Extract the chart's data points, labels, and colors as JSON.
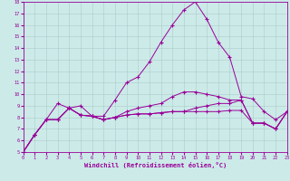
{
  "xlabel": "Windchill (Refroidissement éolien,°C)",
  "background_color": "#cceae8",
  "line_color": "#990099",
  "grid_color": "#aacccc",
  "xlim": [
    0,
    23
  ],
  "ylim": [
    5,
    18
  ],
  "yticks": [
    5,
    6,
    7,
    8,
    9,
    10,
    11,
    12,
    13,
    14,
    15,
    16,
    17,
    18
  ],
  "xticks": [
    0,
    1,
    2,
    3,
    4,
    5,
    6,
    7,
    8,
    9,
    10,
    11,
    12,
    13,
    14,
    15,
    16,
    17,
    18,
    19,
    20,
    21,
    22,
    23
  ],
  "lines": [
    {
      "x": [
        0,
        1,
        2,
        3,
        4,
        5,
        6,
        7,
        8,
        9,
        10,
        11,
        12,
        13,
        14,
        15,
        16,
        17,
        18,
        19,
        20,
        21,
        22,
        23
      ],
      "y": [
        5.0,
        6.5,
        7.8,
        7.8,
        8.8,
        9.0,
        8.1,
        8.1,
        9.5,
        11.0,
        11.5,
        12.8,
        14.5,
        16.0,
        17.3,
        18.0,
        16.5,
        14.5,
        13.2,
        9.8,
        9.6,
        8.5,
        7.8,
        8.5
      ]
    },
    {
      "x": [
        0,
        1,
        2,
        3,
        4,
        5,
        6,
        7,
        8,
        9,
        10,
        11,
        12,
        13,
        14,
        15,
        16,
        17,
        18,
        19,
        20,
        21,
        22,
        23
      ],
      "y": [
        5.0,
        6.5,
        7.8,
        7.8,
        8.8,
        8.2,
        8.1,
        7.8,
        8.0,
        8.2,
        8.3,
        8.3,
        8.4,
        8.5,
        8.5,
        8.5,
        8.5,
        8.5,
        8.6,
        8.6,
        7.5,
        7.5,
        7.0,
        8.5
      ]
    },
    {
      "x": [
        0,
        1,
        2,
        3,
        4,
        5,
        6,
        7,
        8,
        9,
        10,
        11,
        12,
        13,
        14,
        15,
        16,
        17,
        18,
        19,
        20,
        21,
        22,
        23
      ],
      "y": [
        5.0,
        6.5,
        7.8,
        9.2,
        8.8,
        8.2,
        8.1,
        7.8,
        8.0,
        8.5,
        8.8,
        9.0,
        9.2,
        9.8,
        10.2,
        10.2,
        10.0,
        9.8,
        9.5,
        9.5,
        7.5,
        7.5,
        7.0,
        8.5
      ]
    },
    {
      "x": [
        0,
        1,
        2,
        3,
        4,
        5,
        6,
        7,
        8,
        9,
        10,
        11,
        12,
        13,
        14,
        15,
        16,
        17,
        18,
        19,
        20,
        21,
        22,
        23
      ],
      "y": [
        5.0,
        6.5,
        7.8,
        7.8,
        8.8,
        8.2,
        8.1,
        7.8,
        8.0,
        8.2,
        8.3,
        8.3,
        8.4,
        8.5,
        8.5,
        8.8,
        9.0,
        9.2,
        9.2,
        9.5,
        7.5,
        7.5,
        7.0,
        8.5
      ]
    }
  ]
}
